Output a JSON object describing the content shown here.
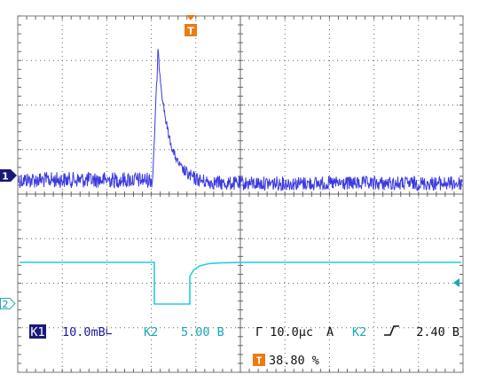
{
  "trigger_marker": {
    "label": "T"
  },
  "channel_markers": {
    "ch1": "1",
    "ch2": "2"
  },
  "status_bar": {
    "ch1_badge": "K1",
    "ch1_scale": "10.0mB∟",
    "ch2_label": "K2",
    "ch2_scale": "5.00 B",
    "timebase": "Г 10.0μc",
    "trigger_mode": "A",
    "trigger_source": "K2",
    "trigger_level": "2.40 B",
    "trigger_badge": "T",
    "trigger_position": "38.80 %"
  },
  "colors": {
    "ch1": "#3a3ae0",
    "ch1_badge_bg": "#1a1a7a",
    "ch2": "#22cce0",
    "trigger": "#ee7a10",
    "grid": "#777777",
    "background": "#ffffff"
  }
}
